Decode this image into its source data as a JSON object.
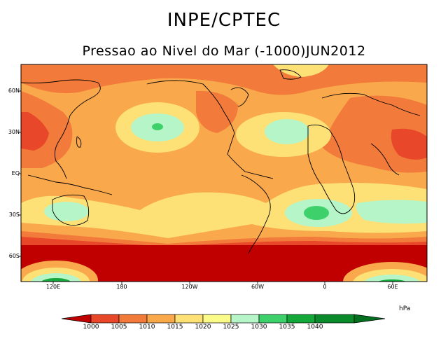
{
  "header": {
    "title": "INPE/CPTEC",
    "subtitle": "Pressao ao Nivel do Mar (-1000)JUN2012"
  },
  "map": {
    "lat_labels": [
      "60N",
      "30N",
      "EQ",
      "30S",
      "60S"
    ],
    "lon_labels": [
      "120E",
      "180",
      "120W",
      "60W",
      "0",
      "60E"
    ]
  },
  "legend": {
    "unit": "hPa",
    "levels": [
      "1000",
      "1005",
      "1010",
      "1015",
      "1020",
      "1025",
      "1030",
      "1035",
      "1040"
    ],
    "colors": [
      "#c00000",
      "#e8472a",
      "#f27a3a",
      "#f9a84c",
      "#fde076",
      "#fbfb8a",
      "#b6f5c8",
      "#3ed06a",
      "#14a83a",
      "#0a8a2a",
      "#037020"
    ]
  }
}
